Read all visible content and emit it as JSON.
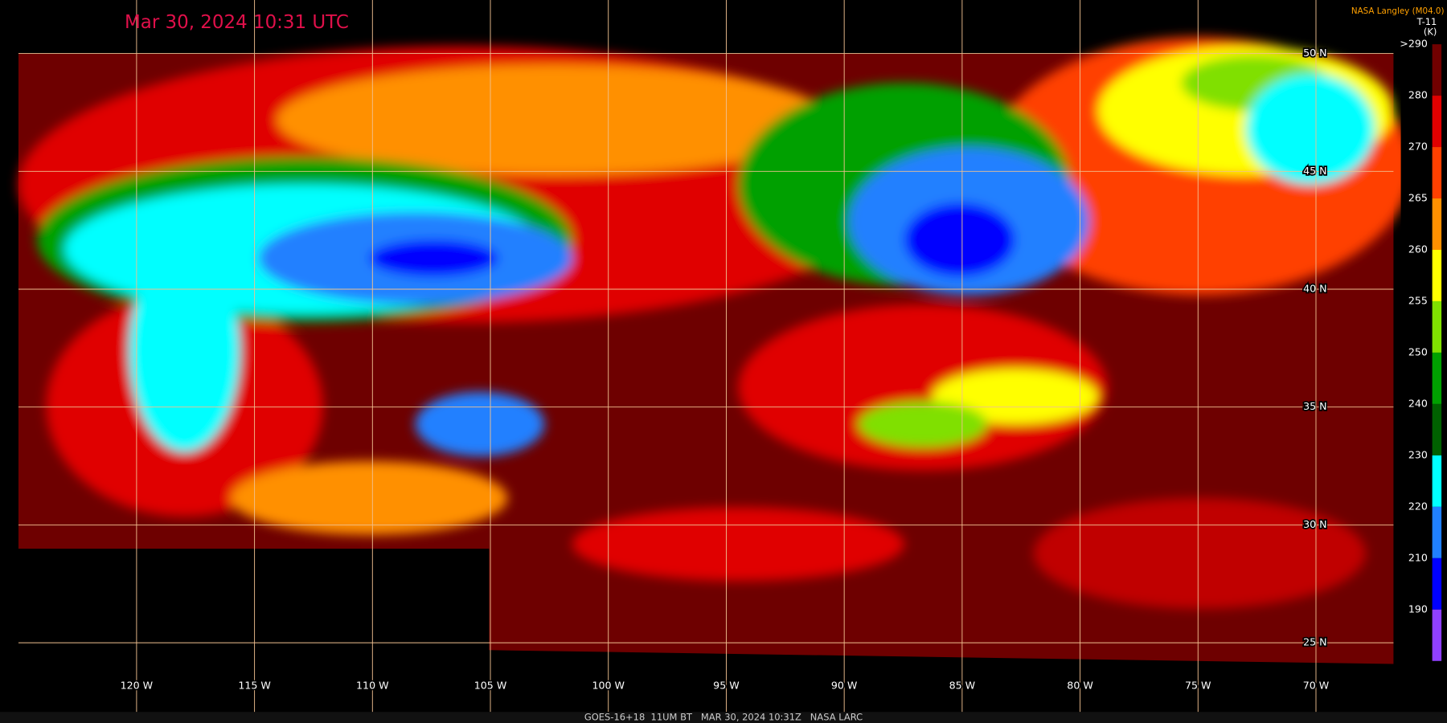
{
  "header": {
    "title": "Mar 30, 2024 10:31 UTC",
    "credit": "NASA Langley (M04.0)"
  },
  "colorbar": {
    "band": "T-11",
    "unit": "(K)",
    "ticks": [
      {
        "value": 290,
        "label": ">290"
      },
      280,
      270,
      265,
      260,
      255,
      250,
      240,
      230,
      220,
      210,
      190
    ],
    "colors": [
      "#700000",
      "#e00000",
      "#ff4000",
      "#ff9000",
      "#ffff00",
      "#80e000",
      "#00a000",
      "#006000",
      "#00ffff",
      "#2080ff",
      "#0000ff",
      "#9040ff"
    ]
  },
  "map": {
    "lat_lines": [
      {
        "value": 50,
        "label": "50 N"
      },
      {
        "value": 45,
        "label": "45 N"
      },
      {
        "value": 40,
        "label": "40 N"
      },
      {
        "value": 35,
        "label": "35 N"
      },
      {
        "value": 30,
        "label": "30 N"
      },
      {
        "value": 25,
        "label": "25 N"
      }
    ],
    "lon_lines": [
      {
        "value": -120,
        "label": "120 W"
      },
      {
        "value": -115,
        "label": "115 W"
      },
      {
        "value": -110,
        "label": "110 W"
      },
      {
        "value": -105,
        "label": "105 W"
      },
      {
        "value": -100,
        "label": "100 W"
      },
      {
        "value": -95,
        "label": "95 W"
      },
      {
        "value": -90,
        "label": "90 W"
      },
      {
        "value": -85,
        "label": "85 W"
      },
      {
        "value": -80,
        "label": "80 W"
      },
      {
        "value": -75,
        "label": "75 W"
      },
      {
        "value": -70,
        "label": "70 W"
      }
    ]
  },
  "footer": {
    "caption": "GOES-16+18  11UM BT   MAR 30, 2024 10:31Z   NASA LARC"
  }
}
